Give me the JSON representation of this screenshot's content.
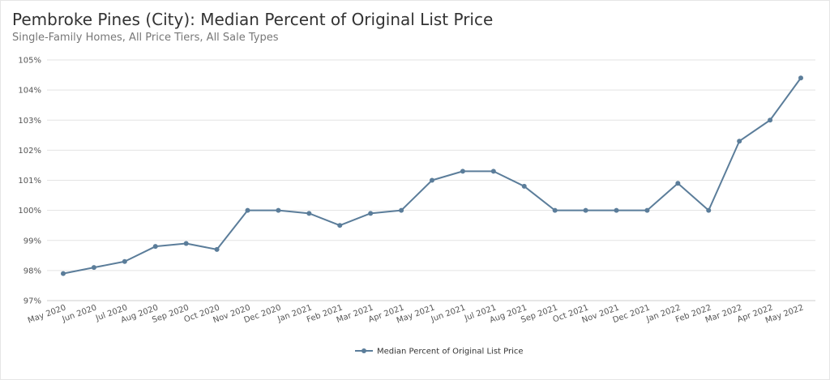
{
  "chart_data": {
    "type": "line",
    "title": "Pembroke Pines (City): Median Percent of Original List Price",
    "subtitle": "Single-Family Homes, All Price Tiers, All Sale Types",
    "xlabel": "",
    "ylabel": "",
    "ylim": [
      97,
      105
    ],
    "y_ticks": [
      "97%",
      "98%",
      "99%",
      "100%",
      "101%",
      "102%",
      "103%",
      "104%",
      "105%"
    ],
    "grid": true,
    "legend_position": "bottom-center",
    "categories": [
      "May 2020",
      "Jun 2020",
      "Jul 2020",
      "Aug 2020",
      "Sep 2020",
      "Oct 2020",
      "Nov 2020",
      "Dec 2020",
      "Jan 2021",
      "Feb 2021",
      "Mar 2021",
      "Apr 2021",
      "May 2021",
      "Jun 2021",
      "Jul 2021",
      "Aug 2021",
      "Sep 2021",
      "Oct 2021",
      "Nov 2021",
      "Dec 2021",
      "Jan 2022",
      "Feb 2022",
      "Mar 2022",
      "Apr 2022",
      "May 2022"
    ],
    "series": [
      {
        "name": "Median Percent of Original List Price",
        "color": "#5b7d9a",
        "values": [
          97.9,
          98.1,
          98.3,
          98.8,
          98.9,
          98.7,
          100.0,
          100.0,
          99.9,
          99.5,
          99.9,
          100.0,
          101.0,
          101.3,
          101.3,
          100.8,
          100.0,
          100.0,
          100.0,
          100.0,
          100.9,
          100.0,
          102.3,
          103.0,
          104.4
        ]
      }
    ]
  }
}
